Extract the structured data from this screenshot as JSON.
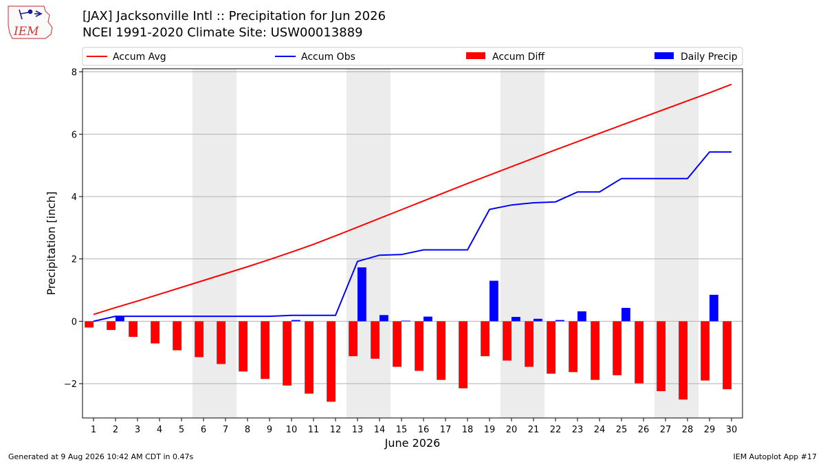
{
  "header": {
    "title": "[JAX] Jacksonville Intl :: Precipitation for Jun 2026",
    "subtitle": "NCEI 1991-2020 Climate Site: USW00013889",
    "logo_text": "IEM"
  },
  "footer": {
    "generated": "Generated at 9 Aug 2026 10:42 AM CDT in 0.47s",
    "app": "IEM Autoplot App #17"
  },
  "colors": {
    "avg": "#ff0000",
    "obs": "#0000ff",
    "diff": "#ff0000",
    "daily": "#0000ff",
    "weekend_shade": "#ececec",
    "grid": "#b0b0b0"
  },
  "chart_data": {
    "type": "bar",
    "xlabel": "June 2026",
    "ylabel": "Precipitation [inch]",
    "ylim": [
      -3.1,
      8.1
    ],
    "xlim": [
      0.5,
      30.5
    ],
    "yticks": [
      -2,
      0,
      2,
      4,
      6,
      8
    ],
    "ytick_labels": [
      "−2",
      "0",
      "2",
      "4",
      "6",
      "8"
    ],
    "days": [
      1,
      2,
      3,
      4,
      5,
      6,
      7,
      8,
      9,
      10,
      11,
      12,
      13,
      14,
      15,
      16,
      17,
      18,
      19,
      20,
      21,
      22,
      23,
      24,
      25,
      26,
      27,
      28,
      29,
      30
    ],
    "shaded_days": [
      [
        6,
        7
      ],
      [
        13,
        14
      ],
      [
        20,
        21
      ],
      [
        27,
        28
      ]
    ],
    "grid": "horizontal",
    "legend_position": "top",
    "legend": [
      "Accum Avg",
      "Accum Obs",
      "Accum Diff",
      "Daily Precip"
    ],
    "series": [
      {
        "name": "Accum Avg",
        "type": "line",
        "values": [
          0.22,
          0.44,
          0.65,
          0.87,
          1.09,
          1.31,
          1.53,
          1.75,
          1.98,
          2.22,
          2.47,
          2.74,
          3.02,
          3.3,
          3.58,
          3.86,
          4.14,
          4.42,
          4.69,
          4.96,
          5.23,
          5.5,
          5.76,
          6.03,
          6.29,
          6.55,
          6.81,
          7.07,
          7.33,
          7.6
        ]
      },
      {
        "name": "Accum Obs",
        "type": "line",
        "values": [
          0.0,
          0.16,
          0.16,
          0.16,
          0.16,
          0.16,
          0.16,
          0.16,
          0.16,
          0.19,
          0.19,
          0.19,
          1.92,
          2.12,
          2.14,
          2.29,
          2.29,
          2.29,
          3.59,
          3.73,
          3.8,
          3.83,
          4.15,
          4.15,
          4.58,
          4.58,
          4.58,
          4.58,
          5.43,
          5.43
        ]
      },
      {
        "name": "Accum Diff",
        "type": "bar",
        "values": [
          -0.2,
          -0.28,
          -0.5,
          -0.71,
          -0.93,
          -1.15,
          -1.37,
          -1.61,
          -1.85,
          -2.06,
          -2.32,
          -2.58,
          -1.12,
          -1.2,
          -1.46,
          -1.59,
          -1.88,
          -2.15,
          -1.12,
          -1.26,
          -1.46,
          -1.68,
          -1.63,
          -1.88,
          -1.73,
          -1.99,
          -2.24,
          -2.51,
          -1.9,
          -2.18
        ]
      },
      {
        "name": "Daily Precip",
        "type": "bar",
        "values": [
          0.0,
          0.16,
          0.0,
          0.0,
          0.0,
          0.0,
          0.0,
          0.0,
          0.0,
          0.04,
          0.0,
          0.0,
          1.73,
          0.2,
          0.02,
          0.15,
          0.0,
          0.0,
          1.3,
          0.14,
          0.08,
          0.04,
          0.32,
          0.0,
          0.43,
          0.0,
          0.0,
          0.0,
          0.85,
          0.0
        ]
      }
    ]
  }
}
